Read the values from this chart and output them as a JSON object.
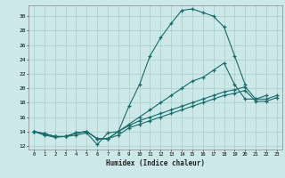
{
  "title": "",
  "xlabel": "Humidex (Indice chaleur)",
  "ylabel": "",
  "bg_color": "#cce8e8",
  "grid_color": "#aacccc",
  "line_color": "#1a6b6b",
  "xlim": [
    -0.5,
    23.5
  ],
  "ylim": [
    11.5,
    31.5
  ],
  "yticks": [
    12,
    14,
    16,
    18,
    20,
    22,
    24,
    26,
    28,
    30
  ],
  "xticks": [
    0,
    1,
    2,
    3,
    4,
    5,
    6,
    7,
    8,
    9,
    10,
    11,
    12,
    13,
    14,
    15,
    16,
    17,
    18,
    19,
    20,
    21,
    22,
    23
  ],
  "series": [
    [
      14.0,
      13.5,
      13.2,
      13.3,
      13.5,
      13.8,
      12.2,
      13.8,
      14.0,
      17.5,
      20.5,
      24.5,
      27.0,
      29.0,
      30.8,
      31.0,
      30.5,
      30.0,
      28.5,
      24.5,
      20.5,
      null,
      null,
      null
    ],
    [
      14.0,
      13.7,
      13.3,
      13.3,
      13.8,
      14.0,
      13.0,
      13.0,
      14.0,
      15.0,
      16.0,
      17.0,
      18.0,
      19.0,
      20.0,
      21.0,
      21.5,
      22.5,
      23.5,
      20.5,
      18.5,
      18.5,
      19.0,
      null
    ],
    [
      14.0,
      13.7,
      13.3,
      13.3,
      13.8,
      14.0,
      13.0,
      13.0,
      14.0,
      14.8,
      15.5,
      16.0,
      16.5,
      17.0,
      17.5,
      18.0,
      18.5,
      19.0,
      19.5,
      19.8,
      20.2,
      18.5,
      18.5,
      19.0
    ],
    [
      14.0,
      13.7,
      13.3,
      13.3,
      13.8,
      14.0,
      13.0,
      13.0,
      13.5,
      14.5,
      15.0,
      15.5,
      16.0,
      16.5,
      17.0,
      17.5,
      18.0,
      18.5,
      19.0,
      19.3,
      19.7,
      18.2,
      18.2,
      18.7
    ]
  ]
}
